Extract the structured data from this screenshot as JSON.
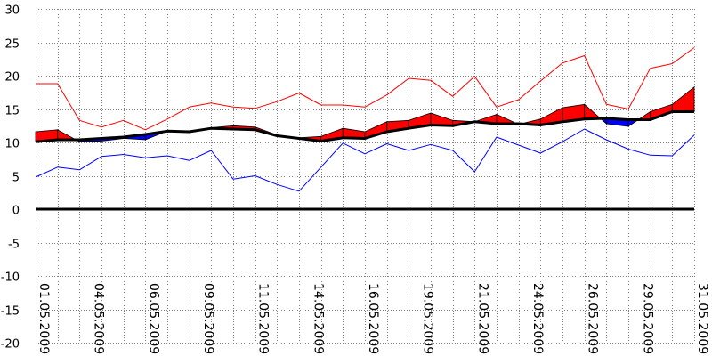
{
  "chart_data": {
    "type": "line",
    "title": "",
    "xlabel": "",
    "ylabel": "",
    "ylim": [
      -20,
      30
    ],
    "yticks": [
      30,
      25,
      20,
      15,
      10,
      5,
      0,
      -5,
      -10,
      -15,
      -20
    ],
    "grid": true,
    "x_tick_labels": [
      "01.05.2009",
      "04.05.2009",
      "06.05.2009",
      "09.05.2009",
      "11.05.2009",
      "14.05.2009",
      "16.05.2009",
      "19.05.2009",
      "21.05.2009",
      "24.05.2009",
      "26.05.2009",
      "29.05.2009",
      "31.05.2009"
    ],
    "x": [
      "01.05.2009",
      "02.05.2009",
      "03.05.2009",
      "04.05.2009",
      "05.05.2009",
      "06.05.2009",
      "07.05.2009",
      "08.05.2009",
      "09.05.2009",
      "10.05.2009",
      "11.05.2009",
      "12.05.2009",
      "13.05.2009",
      "14.05.2009",
      "15.05.2009",
      "16.05.2009",
      "17.05.2009",
      "18.05.2009",
      "19.05.2009",
      "20.05.2009",
      "21.05.2009",
      "22.05.2009",
      "23.05.2009",
      "24.05.2009",
      "25.05.2009",
      "26.05.2009",
      "27.05.2009",
      "28.05.2009",
      "29.05.2009",
      "30.05.2009",
      "31.05.2009"
    ],
    "series": [
      {
        "color": "#ff0000",
        "values": [
          18.8,
          18.8,
          13.3,
          12.3,
          13.3,
          11.9,
          13.5,
          15.3,
          15.9,
          15.3,
          15.1,
          16.1,
          17.4,
          15.6,
          15.6,
          15.3,
          17.1,
          19.6,
          19.3,
          16.9,
          19.9,
          15.3,
          16.4,
          19.2,
          21.9,
          23.0,
          15.7,
          15.0,
          21.1,
          21.8,
          24.2
        ]
      },
      {
        "color": "#0000ff",
        "values": [
          4.8,
          6.3,
          5.9,
          7.9,
          8.2,
          7.7,
          8.0,
          7.3,
          8.8,
          4.5,
          5.0,
          3.7,
          2.7,
          6.3,
          9.9,
          8.3,
          9.8,
          8.8,
          9.7,
          8.8,
          5.6,
          10.8,
          9.6,
          8.4,
          10.1,
          12.0,
          10.4,
          9.0,
          8.1,
          8.0,
          11.1
        ]
      },
      {
        "color": "#000000",
        "values": [
          10.1,
          10.4,
          10.4,
          10.6,
          10.8,
          11.2,
          11.7,
          11.6,
          12.1,
          12.0,
          11.9,
          11.0,
          10.6,
          10.2,
          10.7,
          10.6,
          11.6,
          12.1,
          12.6,
          12.5,
          13.1,
          12.8,
          12.8,
          12.6,
          13.1,
          13.5,
          13.6,
          13.4,
          13.4,
          14.6,
          14.6
        ]
      },
      {
        "values": [
          11.6,
          11.9,
          10.1,
          10.2,
          10.6,
          10.4,
          11.7,
          11.6,
          12.2,
          12.5,
          12.3,
          11.1,
          10.7,
          10.9,
          12.1,
          11.6,
          13.1,
          13.3,
          14.4,
          13.3,
          13.1,
          14.2,
          12.7,
          13.5,
          15.2,
          15.7,
          12.8,
          12.4,
          14.6,
          15.7,
          18.3
        ]
      }
    ],
    "fill_colors": {
      "above": "#ff0000",
      "below": "#0000ff"
    },
    "zero_line_color": "#000000",
    "grid_color": "#808080"
  }
}
